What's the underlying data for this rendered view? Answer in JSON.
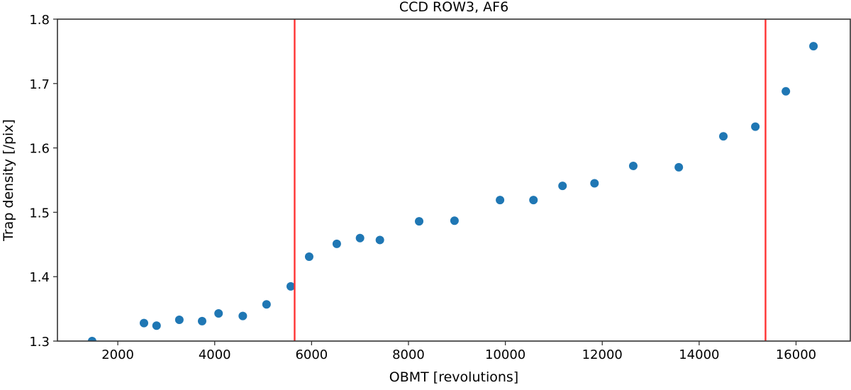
{
  "chart_data": {
    "type": "scatter",
    "title": "CCD ROW3, AF6",
    "xlabel": "OBMT [revolutions]",
    "ylabel": "Trap density [/pix]",
    "xlim": [
      754,
      17120
    ],
    "ylim": [
      1.3,
      1.8
    ],
    "xticks": [
      2000,
      4000,
      6000,
      8000,
      10000,
      12000,
      14000,
      16000
    ],
    "yticks": [
      1.3,
      1.4,
      1.5,
      1.6,
      1.7,
      1.8
    ],
    "ytick_labels": [
      "1.3",
      "1.4",
      "1.5",
      "1.6",
      "1.7",
      "1.8"
    ],
    "grid": false,
    "legend": null,
    "marker_color": "#1f77b4",
    "vline_color": "#ff3333",
    "vlines": [
      5650,
      15370
    ],
    "series": [
      {
        "name": "trap density",
        "x": [
          1470,
          2540,
          2800,
          3270,
          3740,
          4080,
          4580,
          5070,
          5570,
          5950,
          6520,
          7000,
          7410,
          8220,
          8950,
          9890,
          10580,
          11180,
          11840,
          12640,
          13580,
          14500,
          15160,
          15790,
          16360
        ],
        "y": [
          1.3,
          1.328,
          1.324,
          1.333,
          1.331,
          1.343,
          1.339,
          1.357,
          1.385,
          1.431,
          1.451,
          1.46,
          1.457,
          1.486,
          1.487,
          1.519,
          1.519,
          1.541,
          1.545,
          1.572,
          1.57,
          1.618,
          1.633,
          1.688,
          1.758
        ]
      }
    ]
  }
}
